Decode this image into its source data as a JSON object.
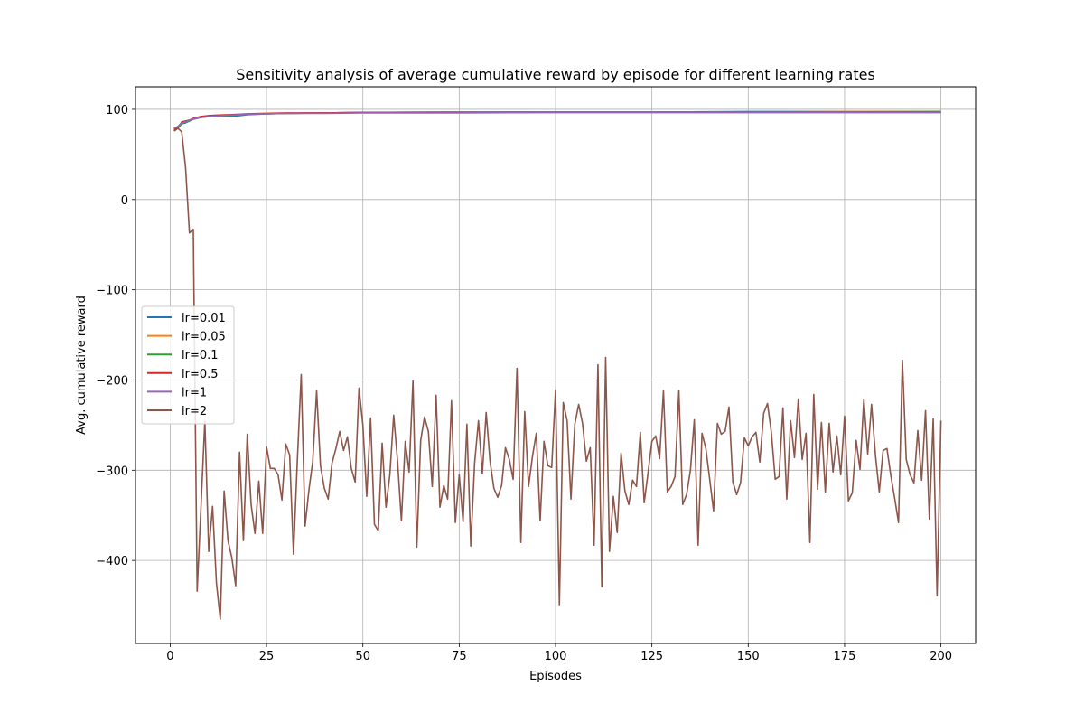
{
  "chart_data": {
    "type": "line",
    "title": "Sensitivity analysis of average cumulative reward by episode for different learning rates",
    "xlabel": "Episodes",
    "ylabel": "Avg. cumulative reward",
    "xlim": [
      -9,
      209
    ],
    "ylim": [
      -492,
      125
    ],
    "xticks": [
      0,
      25,
      50,
      75,
      100,
      125,
      150,
      175,
      200
    ],
    "yticks": [
      100,
      0,
      -100,
      -200,
      -300,
      -400
    ],
    "yticklabels": [
      "100",
      "0",
      "−100",
      "−200",
      "−300",
      "−400"
    ],
    "grid": true,
    "legend_position": "center-left",
    "series": [
      {
        "name": "lr=0.01",
        "color": "#1f77b4",
        "x": [
          1,
          2,
          3,
          4,
          5,
          6,
          7,
          8,
          10,
          12,
          15,
          18,
          20,
          25,
          30,
          40,
          50,
          75,
          100,
          125,
          150,
          175,
          200
        ],
        "y": [
          78,
          80,
          84,
          85,
          87,
          89,
          90,
          91,
          92,
          93,
          92,
          93,
          94,
          95,
          95.5,
          96,
          96.5,
          97,
          97,
          97,
          97.5,
          97.5,
          97.5
        ]
      },
      {
        "name": "lr=0.05",
        "color": "#ff7f0e",
        "x": [
          1,
          2,
          3,
          4,
          5,
          6,
          7,
          8,
          10,
          12,
          15,
          18,
          20,
          25,
          30,
          40,
          50,
          75,
          100,
          125,
          150,
          175,
          200
        ],
        "y": [
          77,
          81,
          85,
          86,
          88,
          89,
          91,
          91.5,
          92.5,
          93,
          93.5,
          94,
          94.5,
          95,
          95.5,
          96,
          96.5,
          97,
          97,
          97,
          97,
          97.5,
          97.5
        ]
      },
      {
        "name": "lr=0.1",
        "color": "#2ca02c",
        "x": [
          1,
          2,
          3,
          4,
          5,
          6,
          7,
          8,
          10,
          12,
          15,
          18,
          20,
          25,
          30,
          40,
          50,
          75,
          100,
          125,
          150,
          175,
          200
        ],
        "y": [
          76,
          79,
          84,
          86,
          87,
          89,
          90,
          91,
          92,
          93,
          93,
          94,
          94.5,
          95,
          95.5,
          96,
          96.5,
          96.5,
          97,
          97,
          97,
          97,
          97.5
        ]
      },
      {
        "name": "lr=0.5",
        "color": "#d62728",
        "x": [
          1,
          2,
          3,
          4,
          5,
          6,
          7,
          8,
          10,
          12,
          15,
          18,
          20,
          25,
          30,
          40,
          50,
          75,
          100,
          125,
          150,
          175,
          200
        ],
        "y": [
          78,
          80,
          86,
          87,
          88,
          90,
          91,
          92,
          93,
          93.5,
          94,
          94.5,
          95,
          95.5,
          96,
          96,
          96.5,
          96.5,
          96.5,
          96.5,
          96.5,
          96.5,
          96.5
        ]
      },
      {
        "name": "lr=1",
        "color": "#9467bd",
        "x": [
          1,
          2,
          3,
          4,
          5,
          6,
          7,
          8,
          10,
          12,
          15,
          18,
          20,
          25,
          30,
          40,
          50,
          75,
          100,
          125,
          150,
          175,
          200
        ],
        "y": [
          79,
          81,
          85,
          86,
          88,
          89,
          90.5,
          91,
          92,
          92.5,
          93.5,
          94,
          94.5,
          95,
          95.5,
          95.5,
          96,
          96,
          96.5,
          96.5,
          96.5,
          96.5,
          96.5
        ]
      },
      {
        "name": "lr=2",
        "color": "#8c564b",
        "x": [
          1,
          2,
          3,
          4,
          5,
          6,
          7,
          8,
          9,
          10,
          11,
          12,
          13,
          14,
          15,
          16,
          17,
          18,
          19,
          20,
          21,
          22,
          23,
          24,
          25,
          26,
          27,
          28,
          29,
          30,
          31,
          32,
          33,
          34,
          35,
          36,
          37,
          38,
          39,
          40,
          41,
          42,
          43,
          44,
          45,
          46,
          47,
          48,
          49,
          50,
          51,
          52,
          53,
          54,
          55,
          56,
          57,
          58,
          59,
          60,
          61,
          62,
          63,
          64,
          65,
          66,
          67,
          68,
          69,
          70,
          71,
          72,
          73,
          74,
          75,
          76,
          77,
          78,
          79,
          80,
          81,
          82,
          83,
          84,
          85,
          86,
          87,
          88,
          89,
          90,
          91,
          92,
          93,
          94,
          95,
          96,
          97,
          98,
          99,
          100,
          101,
          102,
          103,
          104,
          105,
          106,
          107,
          108,
          109,
          110,
          111,
          112,
          113,
          114,
          115,
          116,
          117,
          118,
          119,
          120,
          121,
          122,
          123,
          124,
          125,
          126,
          127,
          128,
          129,
          130,
          131,
          132,
          133,
          134,
          135,
          136,
          137,
          138,
          139,
          140,
          141,
          142,
          143,
          144,
          145,
          146,
          147,
          148,
          149,
          150,
          151,
          152,
          153,
          154,
          155,
          156,
          157,
          158,
          159,
          160,
          161,
          162,
          163,
          164,
          165,
          166,
          167,
          168,
          169,
          170,
          171,
          172,
          173,
          174,
          175,
          176,
          177,
          178,
          179,
          180,
          181,
          182,
          183,
          184,
          185,
          186,
          187,
          188,
          189,
          190,
          191,
          192,
          193,
          194,
          195,
          196,
          197,
          198,
          199,
          200
        ],
        "y": [
          76,
          79,
          75,
          35,
          -37,
          -33,
          -434,
          -340,
          -245,
          -390,
          -340,
          -425,
          -465,
          -323,
          -378,
          -397,
          -428,
          -280,
          -378,
          -260,
          -338,
          -370,
          -312,
          -370,
          -274,
          -298,
          -298,
          -305,
          -333,
          -271,
          -283,
          -393,
          -289,
          -194,
          -362,
          -322,
          -290,
          -212,
          -295,
          -320,
          -332,
          -292,
          -276,
          -257,
          -278,
          -263,
          -298,
          -313,
          -209,
          -250,
          -329,
          -242,
          -360,
          -367,
          -270,
          -341,
          -305,
          -239,
          -290,
          -356,
          -268,
          -302,
          -201,
          -385,
          -267,
          -241,
          -257,
          -318,
          -217,
          -341,
          -317,
          -332,
          -223,
          -358,
          -305,
          -357,
          -249,
          -384,
          -292,
          -245,
          -304,
          -236,
          -290,
          -320,
          -330,
          -317,
          -275,
          -288,
          -310,
          -187,
          -380,
          -235,
          -318,
          -285,
          -259,
          -356,
          -268,
          -295,
          -297,
          -211,
          -449,
          -225,
          -245,
          -332,
          -249,
          -227,
          -248,
          -290,
          -275,
          -383,
          -183,
          -429,
          -175,
          -390,
          -329,
          -369,
          -281,
          -323,
          -338,
          -311,
          -318,
          -258,
          -336,
          -303,
          -268,
          -262,
          -287,
          -212,
          -324,
          -318,
          -307,
          -212,
          -338,
          -327,
          -300,
          -244,
          -383,
          -259,
          -276,
          -310,
          -345,
          -248,
          -260,
          -257,
          -230,
          -313,
          -327,
          -314,
          -264,
          -273,
          -263,
          -258,
          -291,
          -237,
          -226,
          -258,
          -310,
          -307,
          -231,
          -332,
          -245,
          -286,
          -221,
          -288,
          -259,
          -380,
          -216,
          -321,
          -247,
          -324,
          -248,
          -302,
          -262,
          -305,
          -240,
          -334,
          -325,
          -267,
          -299,
          -221,
          -282,
          -227,
          -283,
          -324,
          -278,
          -276,
          -306,
          -331,
          -358,
          -178,
          -288,
          -305,
          -314,
          -256,
          -311,
          -234,
          -354,
          -243,
          -439,
          -245
        ]
      }
    ]
  }
}
